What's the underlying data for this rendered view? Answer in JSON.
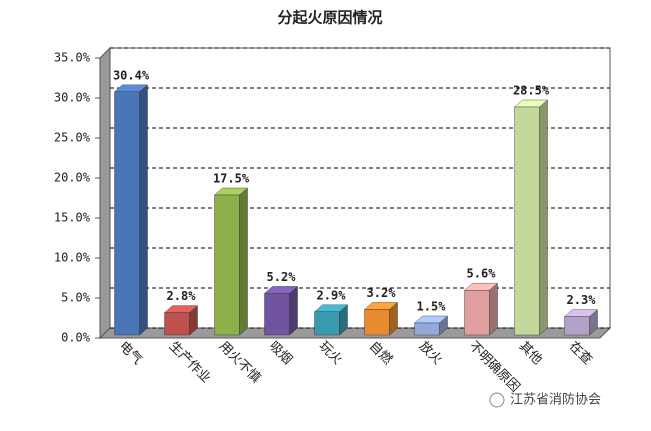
{
  "chart_data": {
    "type": "bar3d",
    "title": "分起火原因情况",
    "categories": [
      "电气",
      "生产作业",
      "用火不慎",
      "吸烟",
      "玩火",
      "自燃",
      "放火",
      "不明确原因",
      "其他",
      "在查"
    ],
    "values": [
      30.4,
      2.8,
      17.5,
      5.2,
      2.9,
      3.2,
      1.5,
      5.6,
      28.5,
      2.3
    ],
    "value_labels": [
      "30.4%",
      "2.8%",
      "17.5%",
      "5.2%",
      "2.9%",
      "3.2%",
      "1.5%",
      "5.6%",
      "28.5%",
      "2.3%"
    ],
    "colors": [
      "#4a76b8",
      "#c0504d",
      "#8db04a",
      "#7054a0",
      "#3a9ab0",
      "#e88a30",
      "#93a9d8",
      "#e0a0a0",
      "#c3d89b",
      "#b3a2c7"
    ],
    "ylim": [
      0,
      35
    ],
    "yticks": [
      {
        "value": 0,
        "label": "0.0%"
      },
      {
        "value": 5,
        "label": "5.0%"
      },
      {
        "value": 10,
        "label": "10.0%"
      },
      {
        "value": 15,
        "label": "15.0%"
      },
      {
        "value": 20,
        "label": "20.0%"
      },
      {
        "value": 25,
        "label": "25.0%"
      },
      {
        "value": 30,
        "label": "30.0%"
      },
      {
        "value": 35,
        "label": "35.0%"
      }
    ],
    "grid": true,
    "watermark": "江苏省消防协会"
  }
}
